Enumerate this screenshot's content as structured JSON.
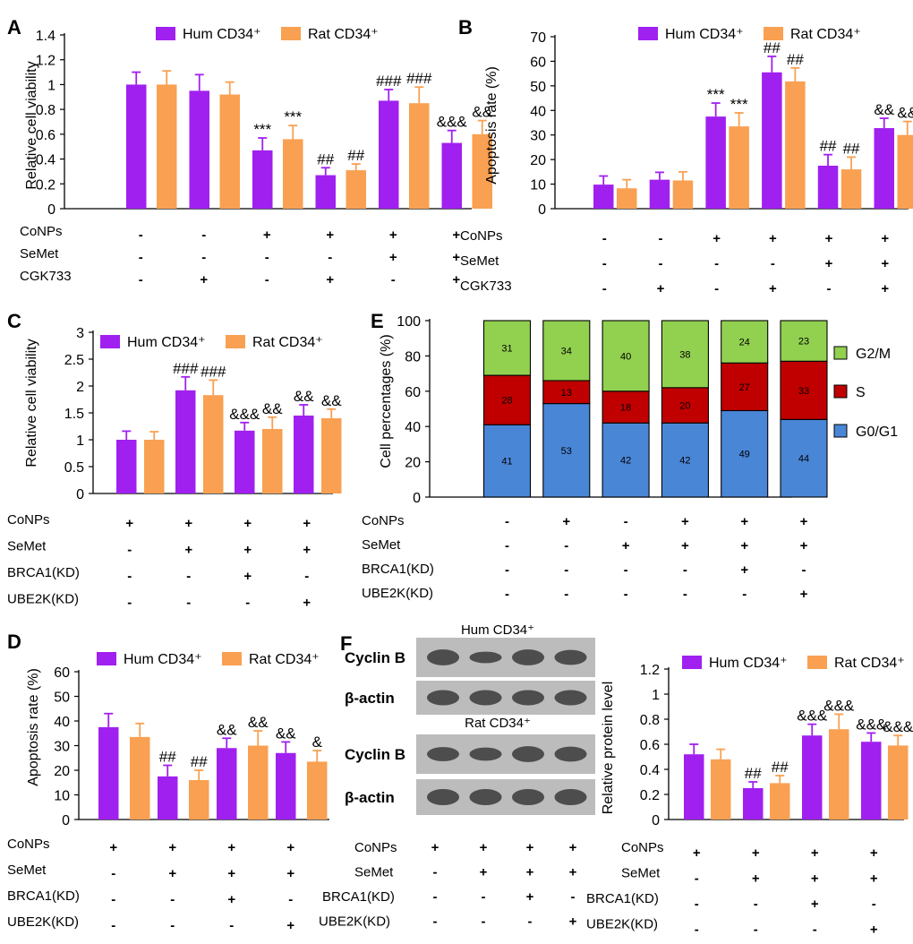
{
  "colors": {
    "hum": "#a020f0",
    "rat": "#f9a052",
    "g2m": "#92d050",
    "s": "#c00000",
    "g0g1": "#4a86d6",
    "blot_bg": "#bcbcbc",
    "band": "#3a3a3a"
  },
  "legend": {
    "hum_label": "Hum CD34⁺",
    "rat_label": "Rat CD34⁺"
  },
  "panel_f": {
    "hum_title": "Hum CD34⁺",
    "rat_title": "Rat CD34⁺",
    "row_labels": [
      "Cyclin B",
      "β-actin",
      "Cyclin B",
      "β-actin"
    ],
    "band_intensity": {
      "hum_cyclin": [
        0.9,
        0.65,
        0.9,
        0.85
      ],
      "rat_cyclin": [
        0.8,
        0.75,
        0.9,
        0.85
      ],
      "actin": [
        1,
        1,
        1,
        1
      ]
    }
  },
  "chart_data": [
    {
      "id": "A",
      "type": "bar",
      "ylabel": "Relative cell viability",
      "ylim": [
        0,
        1.4
      ],
      "yticks": [
        0,
        0.2,
        0.4,
        0.6,
        0.8,
        1,
        1.2,
        1.4
      ],
      "series": [
        {
          "name": "Hum CD34⁺",
          "values": [
            1.0,
            0.95,
            0.47,
            0.27,
            0.87,
            0.53
          ],
          "errors": [
            0.1,
            0.13,
            0.1,
            0.06,
            0.09,
            0.1
          ]
        },
        {
          "name": "Rat CD34⁺",
          "values": [
            1.0,
            0.92,
            0.56,
            0.31,
            0.85,
            0.6
          ],
          "errors": [
            0.11,
            0.1,
            0.11,
            0.05,
            0.13,
            0.11
          ]
        }
      ],
      "annotations": [
        [
          "",
          "",
          "***",
          "##",
          "###",
          "&&&"
        ],
        [
          "",
          "",
          "***",
          "##",
          "###",
          "&&"
        ]
      ],
      "conditions": [
        {
          "label": "CoNPs",
          "signs": [
            "-",
            "-",
            "+",
            "+",
            "+",
            "+"
          ]
        },
        {
          "label": "SeMet",
          "signs": [
            "-",
            "-",
            "-",
            "-",
            "+",
            "+"
          ]
        },
        {
          "label": "CGK733",
          "signs": [
            "-",
            "+",
            "-",
            "+",
            "-",
            "+"
          ]
        }
      ]
    },
    {
      "id": "B",
      "type": "bar",
      "ylabel": "Apoptosis rate (%)",
      "ylim": [
        0,
        70
      ],
      "yticks": [
        0,
        10,
        20,
        30,
        40,
        50,
        60,
        70
      ],
      "series": [
        {
          "name": "Hum CD34⁺",
          "values": [
            9.8,
            11.8,
            37.5,
            55.5,
            17.5,
            32.8
          ],
          "errors": [
            3.5,
            3.0,
            5.5,
            6.5,
            4.5,
            4.0
          ]
        },
        {
          "name": "Rat CD34⁺",
          "values": [
            8.3,
            11.5,
            33.5,
            51.8,
            16.0,
            30.0
          ],
          "errors": [
            3.5,
            3.5,
            5.5,
            5.5,
            5.0,
            5.5
          ]
        }
      ],
      "annotations": [
        [
          "",
          "",
          "***",
          "##",
          "##",
          "&&"
        ],
        [
          "",
          "",
          "***",
          "##",
          "##",
          "&&"
        ]
      ],
      "conditions": [
        {
          "label": "CoNPs",
          "signs": [
            "-",
            "-",
            "+",
            "+",
            "+",
            "+"
          ]
        },
        {
          "label": "SeMet",
          "signs": [
            "-",
            "-",
            "-",
            "-",
            "+",
            "+"
          ]
        },
        {
          "label": "CGK733",
          "signs": [
            "-",
            "+",
            "-",
            "+",
            "-",
            "+"
          ]
        }
      ]
    },
    {
      "id": "C",
      "type": "bar",
      "ylabel": "Relative cell viability",
      "ylim": [
        0,
        3
      ],
      "yticks": [
        0,
        0.5,
        1,
        1.5,
        2,
        2.5,
        3
      ],
      "series": [
        {
          "name": "Hum CD34⁺",
          "values": [
            1.0,
            1.92,
            1.17,
            1.45
          ],
          "errors": [
            0.16,
            0.25,
            0.15,
            0.2
          ]
        },
        {
          "name": "Rat CD34⁺",
          "values": [
            1.0,
            1.83,
            1.2,
            1.4
          ],
          "errors": [
            0.15,
            0.28,
            0.22,
            0.17
          ]
        }
      ],
      "annotations": [
        [
          "",
          "###",
          "&&&",
          "&&"
        ],
        [
          "",
          "###",
          "&&",
          "&&"
        ]
      ],
      "conditions": [
        {
          "label": "CoNPs",
          "signs": [
            "+",
            "+",
            "+",
            "+"
          ]
        },
        {
          "label": "SeMet",
          "signs": [
            "-",
            "+",
            "+",
            "+"
          ]
        },
        {
          "label": "BRCA1(KD)",
          "signs": [
            "-",
            "-",
            "+",
            "-"
          ]
        },
        {
          "label": "UBE2K(KD)",
          "signs": [
            "-",
            "-",
            "-",
            "+"
          ]
        }
      ]
    },
    {
      "id": "D",
      "type": "bar",
      "ylabel": "Apoptosis rate (%)",
      "ylim": [
        0,
        60
      ],
      "yticks": [
        0,
        10,
        20,
        30,
        40,
        50,
        60
      ],
      "series": [
        {
          "name": "Hum CD34⁺",
          "values": [
            37.5,
            17.5,
            29.0,
            27.0
          ],
          "errors": [
            5.5,
            4.5,
            4.0,
            4.5
          ]
        },
        {
          "name": "Rat CD34⁺",
          "values": [
            33.5,
            16.0,
            30.0,
            23.5
          ],
          "errors": [
            5.5,
            4.0,
            6.0,
            4.5
          ]
        }
      ],
      "annotations": [
        [
          "",
          "##",
          "&&",
          "&&"
        ],
        [
          "",
          "##",
          "&&",
          "&"
        ]
      ],
      "conditions": [
        {
          "label": "CoNPs",
          "signs": [
            "+",
            "+",
            "+",
            "+"
          ]
        },
        {
          "label": "SeMet",
          "signs": [
            "-",
            "+",
            "+",
            "+"
          ]
        },
        {
          "label": "BRCA1(KD)",
          "signs": [
            "-",
            "-",
            "+",
            "-"
          ]
        },
        {
          "label": "UBE2K(KD)",
          "signs": [
            "-",
            "-",
            "-",
            "+"
          ]
        }
      ]
    },
    {
      "id": "E",
      "type": "bar",
      "stacked": true,
      "ylabel": "Cell percentages (%)",
      "ylim": [
        0,
        100
      ],
      "yticks": [
        0,
        20,
        40,
        60,
        80,
        100
      ],
      "series": [
        {
          "name": "G0/G1",
          "values": [
            41,
            53,
            42,
            42,
            49,
            44
          ]
        },
        {
          "name": "S",
          "values": [
            28,
            13,
            18,
            20,
            27,
            33
          ]
        },
        {
          "name": "G2/M",
          "values": [
            31,
            34,
            40,
            38,
            24,
            23
          ]
        }
      ],
      "legend": [
        "G2/M",
        "S",
        "G0/G1"
      ],
      "conditions": [
        {
          "label": "CoNPs",
          "signs": [
            "-",
            "+",
            "-",
            "+",
            "+",
            "+"
          ]
        },
        {
          "label": "SeMet",
          "signs": [
            "-",
            "-",
            "+",
            "+",
            "+",
            "+"
          ]
        },
        {
          "label": "BRCA1(KD)",
          "signs": [
            "-",
            "-",
            "-",
            "-",
            "+",
            "-"
          ]
        },
        {
          "label": "UBE2K(KD)",
          "signs": [
            "-",
            "-",
            "-",
            "-",
            "-",
            "+"
          ]
        }
      ]
    },
    {
      "id": "F",
      "type": "bar",
      "ylabel": "Relative protein level",
      "ylim": [
        0,
        1.2
      ],
      "yticks": [
        0,
        0.2,
        0.4,
        0.6,
        0.8,
        1,
        1.2
      ],
      "series": [
        {
          "name": "Hum CD34⁺",
          "values": [
            0.52,
            0.25,
            0.67,
            0.62
          ],
          "errors": [
            0.08,
            0.05,
            0.09,
            0.07
          ]
        },
        {
          "name": "Rat CD34⁺",
          "values": [
            0.48,
            0.29,
            0.72,
            0.59
          ],
          "errors": [
            0.08,
            0.06,
            0.12,
            0.08
          ]
        }
      ],
      "annotations": [
        [
          "",
          "##",
          "&&&",
          "&&&"
        ],
        [
          "",
          "##",
          "&&&",
          "&&&"
        ]
      ],
      "conditions": [
        {
          "label": "CoNPs",
          "signs": [
            "+",
            "+",
            "+",
            "+"
          ]
        },
        {
          "label": "SeMet",
          "signs": [
            "-",
            "+",
            "+",
            "+"
          ]
        },
        {
          "label": "BRCA1(KD)",
          "signs": [
            "-",
            "-",
            "+",
            "-"
          ]
        },
        {
          "label": "UBE2K(KD)",
          "signs": [
            "-",
            "-",
            "-",
            "+"
          ]
        }
      ]
    }
  ]
}
